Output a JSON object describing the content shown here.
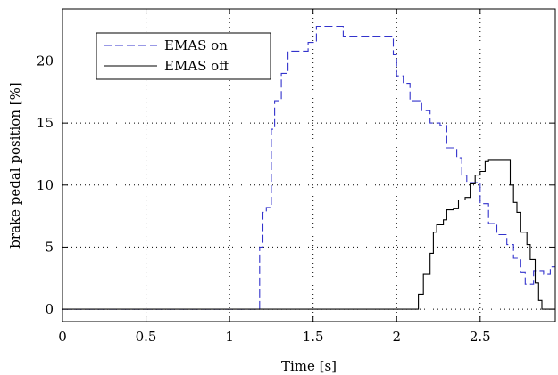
{
  "chart_data": {
    "type": "line",
    "xlabel": "Time [s]",
    "ylabel": "brake pedal position [%]",
    "xlim": [
      0,
      2.95
    ],
    "ylim": [
      -1,
      24.2
    ],
    "xticks": [
      0,
      0.5,
      1,
      1.5,
      2,
      2.5
    ],
    "xtick_labels": [
      "0",
      "0.5",
      "1",
      "1.5",
      "2",
      "2.5"
    ],
    "yticks": [
      0,
      5,
      10,
      15,
      20
    ],
    "ytick_labels": [
      "0",
      "5",
      "10",
      "15",
      "20"
    ],
    "grid": true,
    "legend_position": "top-left",
    "series": [
      {
        "name": "EMAS on",
        "style": "dashed",
        "color": "#3333cc",
        "x": [
          0,
          1.18,
          1.18,
          1.2,
          1.2,
          1.22,
          1.22,
          1.25,
          1.25,
          1.27,
          1.27,
          1.31,
          1.31,
          1.35,
          1.35,
          1.43,
          1.43,
          1.47,
          1.47,
          1.52,
          1.52,
          1.58,
          1.58,
          1.68,
          1.68,
          1.98,
          1.98,
          2.0,
          2.0,
          2.04,
          2.04,
          2.08,
          2.08,
          2.15,
          2.15,
          2.2,
          2.2,
          2.26,
          2.26,
          2.3,
          2.3,
          2.36,
          2.36,
          2.39,
          2.39,
          2.42,
          2.42,
          2.5,
          2.5,
          2.55,
          2.55,
          2.6,
          2.6,
          2.66,
          2.66,
          2.7,
          2.7,
          2.74,
          2.74,
          2.77,
          2.77,
          2.82,
          2.82,
          2.88,
          2.88,
          2.92,
          2.92,
          2.95
        ],
        "y": [
          0,
          0,
          5,
          5,
          7.8,
          7.8,
          8.2,
          8.2,
          14.5,
          14.5,
          16.8,
          16.8,
          19,
          19,
          20.8,
          20.8,
          20.8,
          20.8,
          21.5,
          21.5,
          22.8,
          22.8,
          22.8,
          22.8,
          22,
          22,
          20.5,
          20.5,
          18.8,
          18.8,
          18.2,
          18.2,
          16.8,
          16.8,
          16,
          16,
          15,
          15,
          14.8,
          14.8,
          13,
          13,
          12.2,
          12.2,
          10.8,
          10.8,
          10.2,
          10.2,
          8.5,
          8.5,
          6.9,
          6.9,
          6,
          6,
          5.2,
          5.2,
          4.1,
          4.1,
          3,
          3,
          2,
          2,
          3.1,
          3.1,
          2.8,
          2.8,
          3.4,
          3.4
        ]
      },
      {
        "name": "EMAS off",
        "style": "solid",
        "color": "#000000",
        "x": [
          0,
          2.13,
          2.13,
          2.16,
          2.16,
          2.2,
          2.2,
          2.22,
          2.22,
          2.24,
          2.24,
          2.28,
          2.28,
          2.3,
          2.3,
          2.34,
          2.34,
          2.37,
          2.37,
          2.41,
          2.41,
          2.44,
          2.44,
          2.47,
          2.47,
          2.5,
          2.5,
          2.53,
          2.53,
          2.55,
          2.55,
          2.68,
          2.68,
          2.7,
          2.7,
          2.72,
          2.72,
          2.74,
          2.74,
          2.78,
          2.78,
          2.8,
          2.8,
          2.83,
          2.83,
          2.85,
          2.85,
          2.87,
          2.87,
          2.9,
          2.9,
          2.95
        ],
        "y": [
          0,
          0,
          1.2,
          1.2,
          2.8,
          2.8,
          4.5,
          4.5,
          6.2,
          6.2,
          6.8,
          6.8,
          7.2,
          7.2,
          8,
          8,
          8.1,
          8.1,
          8.8,
          8.8,
          9,
          9,
          10.1,
          10.1,
          10.8,
          10.8,
          11.1,
          11.1,
          11.9,
          11.9,
          12,
          12,
          10,
          10,
          8.6,
          8.6,
          7.8,
          7.8,
          6.2,
          6.2,
          5.2,
          5.2,
          4,
          4,
          2.1,
          2.1,
          0.7,
          0.7,
          0,
          0,
          0,
          0
        ]
      }
    ]
  }
}
